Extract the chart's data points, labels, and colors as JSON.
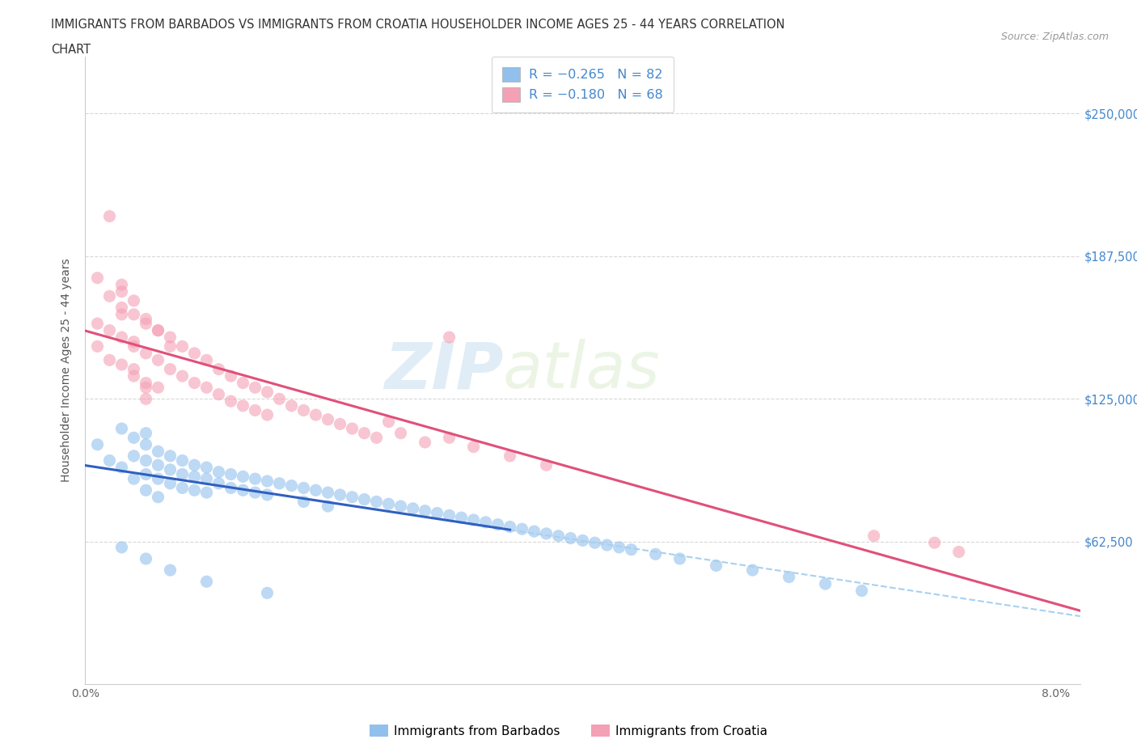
{
  "title_line1": "IMMIGRANTS FROM BARBADOS VS IMMIGRANTS FROM CROATIA HOUSEHOLDER INCOME AGES 25 - 44 YEARS CORRELATION",
  "title_line2": "CHART",
  "source_text": "Source: ZipAtlas.com",
  "ylabel": "Householder Income Ages 25 - 44 years",
  "xlim": [
    0.0,
    0.082
  ],
  "ylim": [
    0,
    275000
  ],
  "yticks": [
    62500,
    125000,
    187500,
    250000
  ],
  "ytick_labels": [
    "$62,500",
    "$125,000",
    "$187,500",
    "$250,000"
  ],
  "watermark_zip": "ZIP",
  "watermark_atlas": "atlas",
  "legend_r_barbados": "-0.265",
  "legend_n_barbados": "82",
  "legend_r_croatia": "-0.180",
  "legend_n_croatia": "68",
  "color_barbados": "#92C0ED",
  "color_croatia": "#F4A0B5",
  "color_line_barbados": "#3060C0",
  "color_line_croatia": "#E0507A",
  "color_dashed_line": "#A8D0F0",
  "background_color": "#ffffff",
  "grid_color": "#d8d8d8",
  "title_color": "#333333",
  "axis_label_color": "#555555",
  "tick_color_y": "#4488CC",
  "tick_color_x": "#666666",
  "barbados_x": [
    0.001,
    0.002,
    0.003,
    0.003,
    0.004,
    0.004,
    0.004,
    0.005,
    0.005,
    0.005,
    0.005,
    0.005,
    0.006,
    0.006,
    0.006,
    0.006,
    0.007,
    0.007,
    0.007,
    0.008,
    0.008,
    0.008,
    0.009,
    0.009,
    0.009,
    0.01,
    0.01,
    0.01,
    0.011,
    0.011,
    0.012,
    0.012,
    0.013,
    0.013,
    0.014,
    0.014,
    0.015,
    0.015,
    0.016,
    0.017,
    0.018,
    0.018,
    0.019,
    0.02,
    0.02,
    0.021,
    0.022,
    0.023,
    0.024,
    0.025,
    0.026,
    0.027,
    0.028,
    0.029,
    0.03,
    0.031,
    0.032,
    0.033,
    0.034,
    0.035,
    0.036,
    0.037,
    0.038,
    0.039,
    0.04,
    0.041,
    0.042,
    0.043,
    0.044,
    0.045,
    0.047,
    0.049,
    0.052,
    0.055,
    0.058,
    0.061,
    0.064,
    0.003,
    0.005,
    0.007,
    0.01,
    0.015
  ],
  "barbados_y": [
    105000,
    98000,
    112000,
    95000,
    108000,
    100000,
    90000,
    110000,
    105000,
    98000,
    92000,
    85000,
    102000,
    96000,
    90000,
    82000,
    100000,
    94000,
    88000,
    98000,
    92000,
    86000,
    96000,
    91000,
    85000,
    95000,
    90000,
    84000,
    93000,
    88000,
    92000,
    86000,
    91000,
    85000,
    90000,
    84000,
    89000,
    83000,
    88000,
    87000,
    86000,
    80000,
    85000,
    84000,
    78000,
    83000,
    82000,
    81000,
    80000,
    79000,
    78000,
    77000,
    76000,
    75000,
    74000,
    73000,
    72000,
    71000,
    70000,
    69000,
    68000,
    67000,
    66000,
    65000,
    64000,
    63000,
    62000,
    61000,
    60000,
    59000,
    57000,
    55000,
    52000,
    50000,
    47000,
    44000,
    41000,
    60000,
    55000,
    50000,
    45000,
    40000
  ],
  "croatia_x": [
    0.001,
    0.001,
    0.002,
    0.002,
    0.003,
    0.003,
    0.003,
    0.004,
    0.004,
    0.004,
    0.005,
    0.005,
    0.005,
    0.006,
    0.006,
    0.006,
    0.007,
    0.007,
    0.008,
    0.008,
    0.009,
    0.009,
    0.01,
    0.01,
    0.011,
    0.011,
    0.012,
    0.012,
    0.013,
    0.013,
    0.014,
    0.014,
    0.015,
    0.015,
    0.016,
    0.017,
    0.018,
    0.019,
    0.02,
    0.021,
    0.022,
    0.023,
    0.024,
    0.025,
    0.026,
    0.028,
    0.03,
    0.032,
    0.035,
    0.038,
    0.001,
    0.002,
    0.003,
    0.003,
    0.004,
    0.005,
    0.006,
    0.007,
    0.004,
    0.005,
    0.03,
    0.065,
    0.07,
    0.072,
    0.002,
    0.003,
    0.004,
    0.005
  ],
  "croatia_y": [
    148000,
    158000,
    142000,
    155000,
    165000,
    152000,
    140000,
    162000,
    150000,
    138000,
    158000,
    145000,
    132000,
    155000,
    142000,
    130000,
    152000,
    138000,
    148000,
    135000,
    145000,
    132000,
    142000,
    130000,
    138000,
    127000,
    135000,
    124000,
    132000,
    122000,
    130000,
    120000,
    128000,
    118000,
    125000,
    122000,
    120000,
    118000,
    116000,
    114000,
    112000,
    110000,
    108000,
    115000,
    110000,
    106000,
    108000,
    104000,
    100000,
    96000,
    178000,
    170000,
    175000,
    162000,
    168000,
    160000,
    155000,
    148000,
    135000,
    125000,
    152000,
    65000,
    62000,
    58000,
    205000,
    172000,
    148000,
    130000
  ]
}
